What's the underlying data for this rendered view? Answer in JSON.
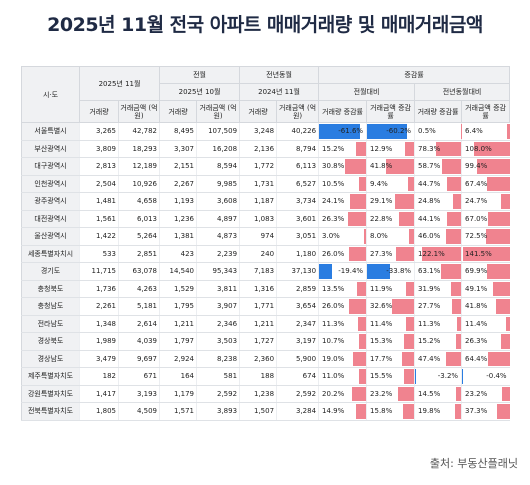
{
  "title": "2025년 11월 전국 아파트 매매거래량 및 매매거래금액",
  "source": "출처: 부동산플래닛",
  "headers": {
    "region": "시·도",
    "cur_month": "2025년 11월",
    "prev_month_group": "전월",
    "prev_month": "2025년 10월",
    "yoy_group": "전년동월",
    "yoy_month": "2024년 11월",
    "change_group": "증감률",
    "mom_group": "전월대비",
    "yoy_change_group": "전년동월대비",
    "volume": "거래량",
    "amount": "거래금액 (억 원)",
    "vol_rate": "거래량 증감률",
    "amt_rate": "거래금액 증감률"
  },
  "chart_data": {
    "type": "table",
    "title": "2025년 11월 전국 아파트 매매거래량 및 매매거래금액",
    "columns": [
      "시·도",
      "2025년 11월 거래량",
      "2025년 11월 거래금액 (억 원)",
      "2025년 10월 거래량",
      "2025년 10월 거래금액 (억 원)",
      "2024년 11월 거래량",
      "2024년 11월 거래금액 (억 원)",
      "전월대비 거래량 증감률",
      "전월대비 거래금액 증감률",
      "전년동월대비 거래량 증감률",
      "전년동월대비 거래금액 증감률"
    ],
    "rows": [
      {
        "region": "서울특별시",
        "v": "3,265",
        "a": "42,782",
        "pv": "8,495",
        "pa": "107,509",
        "yv": "3,248",
        "ya": "40,226",
        "m1": -61.6,
        "m1t": "-61.6%",
        "m2": -60.2,
        "m2t": "-60.2%",
        "y1": 0.5,
        "y1t": "0.5%",
        "y2": 6.4,
        "y2t": "6.4%"
      },
      {
        "region": "부산광역시",
        "v": "3,809",
        "a": "18,293",
        "pv": "3,307",
        "pa": "16,208",
        "yv": "2,136",
        "ya": "8,794",
        "m1": 15.2,
        "m1t": "15.2%",
        "m2": 12.9,
        "m2t": "12.9%",
        "y1": 78.3,
        "y1t": "78.3%",
        "y2": 108.0,
        "y2t": "108.0%"
      },
      {
        "region": "대구광역시",
        "v": "2,813",
        "a": "12,189",
        "pv": "2,151",
        "pa": "8,594",
        "yv": "1,772",
        "ya": "6,113",
        "m1": 30.8,
        "m1t": "30.8%",
        "m2": 41.8,
        "m2t": "41.8%",
        "y1": 58.7,
        "y1t": "58.7%",
        "y2": 99.4,
        "y2t": "99.4%"
      },
      {
        "region": "인천광역시",
        "v": "2,504",
        "a": "10,926",
        "pv": "2,267",
        "pa": "9,985",
        "yv": "1,731",
        "ya": "6,527",
        "m1": 10.5,
        "m1t": "10.5%",
        "m2": 9.4,
        "m2t": "9.4%",
        "y1": 44.7,
        "y1t": "44.7%",
        "y2": 67.4,
        "y2t": "67.4%"
      },
      {
        "region": "광주광역시",
        "v": "1,481",
        "a": "4,658",
        "pv": "1,193",
        "pa": "3,608",
        "yv": "1,187",
        "ya": "3,734",
        "m1": 24.1,
        "m1t": "24.1%",
        "m2": 29.1,
        "m2t": "29.1%",
        "y1": 24.8,
        "y1t": "24.8%",
        "y2": 24.7,
        "y2t": "24.7%"
      },
      {
        "region": "대전광역시",
        "v": "1,561",
        "a": "6,013",
        "pv": "1,236",
        "pa": "4,897",
        "yv": "1,083",
        "ya": "3,601",
        "m1": 26.3,
        "m1t": "26.3%",
        "m2": 22.8,
        "m2t": "22.8%",
        "y1": 44.1,
        "y1t": "44.1%",
        "y2": 67.0,
        "y2t": "67.0%"
      },
      {
        "region": "울산광역시",
        "v": "1,422",
        "a": "5,264",
        "pv": "1,381",
        "pa": "4,873",
        "yv": "974",
        "ya": "3,051",
        "m1": 3.0,
        "m1t": "3.0%",
        "m2": 8.0,
        "m2t": "8.0%",
        "y1": 46.0,
        "y1t": "46.0%",
        "y2": 72.5,
        "y2t": "72.5%"
      },
      {
        "region": "세종특별자치시",
        "v": "533",
        "a": "2,851",
        "pv": "423",
        "pa": "2,239",
        "yv": "240",
        "ya": "1,180",
        "m1": 26.0,
        "m1t": "26.0%",
        "m2": 27.3,
        "m2t": "27.3%",
        "y1": 122.1,
        "y1t": "122.1%",
        "y2": 141.5,
        "y2t": "141.5%"
      },
      {
        "region": "경기도",
        "v": "11,715",
        "a": "63,078",
        "pv": "14,540",
        "pa": "95,343",
        "yv": "7,183",
        "ya": "37,130",
        "m1": -19.4,
        "m1t": "-19.4%",
        "m2": -33.8,
        "m2t": "-33.8%",
        "y1": 63.1,
        "y1t": "63.1%",
        "y2": 69.9,
        "y2t": "69.9%"
      },
      {
        "region": "충청북도",
        "v": "1,736",
        "a": "4,263",
        "pv": "1,529",
        "pa": "3,811",
        "yv": "1,316",
        "ya": "2,859",
        "m1": 13.5,
        "m1t": "13.5%",
        "m2": 11.9,
        "m2t": "11.9%",
        "y1": 31.9,
        "y1t": "31.9%",
        "y2": 49.1,
        "y2t": "49.1%"
      },
      {
        "region": "충청남도",
        "v": "2,261",
        "a": "5,181",
        "pv": "1,795",
        "pa": "3,907",
        "yv": "1,771",
        "ya": "3,654",
        "m1": 26.0,
        "m1t": "26.0%",
        "m2": 32.6,
        "m2t": "32.6%",
        "y1": 27.7,
        "y1t": "27.7%",
        "y2": 41.8,
        "y2t": "41.8%"
      },
      {
        "region": "전라남도",
        "v": "1,348",
        "a": "2,614",
        "pv": "1,211",
        "pa": "2,346",
        "yv": "1,211",
        "ya": "2,347",
        "m1": 11.3,
        "m1t": "11.3%",
        "m2": 11.4,
        "m2t": "11.4%",
        "y1": 11.3,
        "y1t": "11.3%",
        "y2": 11.4,
        "y2t": "11.4%"
      },
      {
        "region": "경상북도",
        "v": "1,989",
        "a": "4,039",
        "pv": "1,797",
        "pa": "3,503",
        "yv": "1,727",
        "ya": "3,197",
        "m1": 10.7,
        "m1t": "10.7%",
        "m2": 15.3,
        "m2t": "15.3%",
        "y1": 15.2,
        "y1t": "15.2%",
        "y2": 26.3,
        "y2t": "26.3%"
      },
      {
        "region": "경상남도",
        "v": "3,479",
        "a": "9,697",
        "pv": "2,924",
        "pa": "8,238",
        "yv": "2,360",
        "ya": "5,900",
        "m1": 19.0,
        "m1t": "19.0%",
        "m2": 17.7,
        "m2t": "17.7%",
        "y1": 47.4,
        "y1t": "47.4%",
        "y2": 64.4,
        "y2t": "64.4%"
      },
      {
        "region": "제주특별자치도",
        "v": "182",
        "a": "671",
        "pv": "164",
        "pa": "581",
        "yv": "188",
        "ya": "674",
        "m1": 11.0,
        "m1t": "11.0%",
        "m2": 15.5,
        "m2t": "15.5%",
        "y1": -3.2,
        "y1t": "-3.2%",
        "y2": -0.4,
        "y2t": "-0.4%"
      },
      {
        "region": "강원특별자치도",
        "v": "1,417",
        "a": "3,193",
        "pv": "1,179",
        "pa": "2,592",
        "yv": "1,238",
        "ya": "2,592",
        "m1": 20.2,
        "m1t": "20.2%",
        "m2": 23.2,
        "m2t": "23.2%",
        "y1": 14.5,
        "y1t": "14.5%",
        "y2": 23.2,
        "y2t": "23.2%"
      },
      {
        "region": "전북특별자치도",
        "v": "1,805",
        "a": "4,509",
        "pv": "1,571",
        "pa": "3,893",
        "yv": "1,507",
        "ya": "3,284",
        "m1": 14.9,
        "m1t": "14.9%",
        "m2": 15.8,
        "m2t": "15.8%",
        "y1": 19.8,
        "y1t": "19.8%",
        "y2": 37.3,
        "y2t": "37.3%"
      }
    ]
  },
  "colors": {
    "positive_bar": "#f0838f",
    "negative_bar": "#2a7de1",
    "header_bg": "#f0f1f3"
  }
}
